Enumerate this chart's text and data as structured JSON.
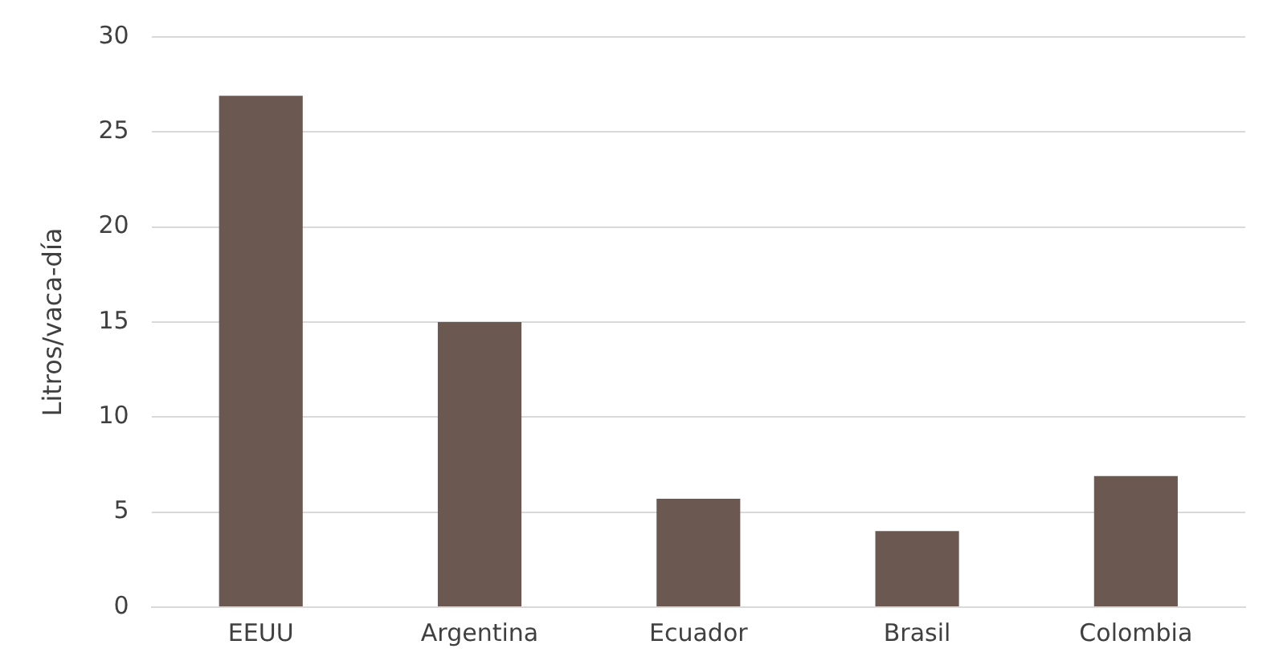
{
  "chart_data": {
    "type": "bar",
    "ylabel": "Litros/vaca-día",
    "categories": [
      "EEUU",
      "Argentina",
      "Ecuador",
      "Brasil",
      "Colombia"
    ],
    "values": [
      26.9,
      15,
      5.7,
      4,
      6.9
    ],
    "color": "#6b5850",
    "ylim": [
      0,
      30
    ],
    "yticks": [
      0,
      5,
      10,
      15,
      20,
      25,
      30
    ],
    "grid": "y"
  }
}
